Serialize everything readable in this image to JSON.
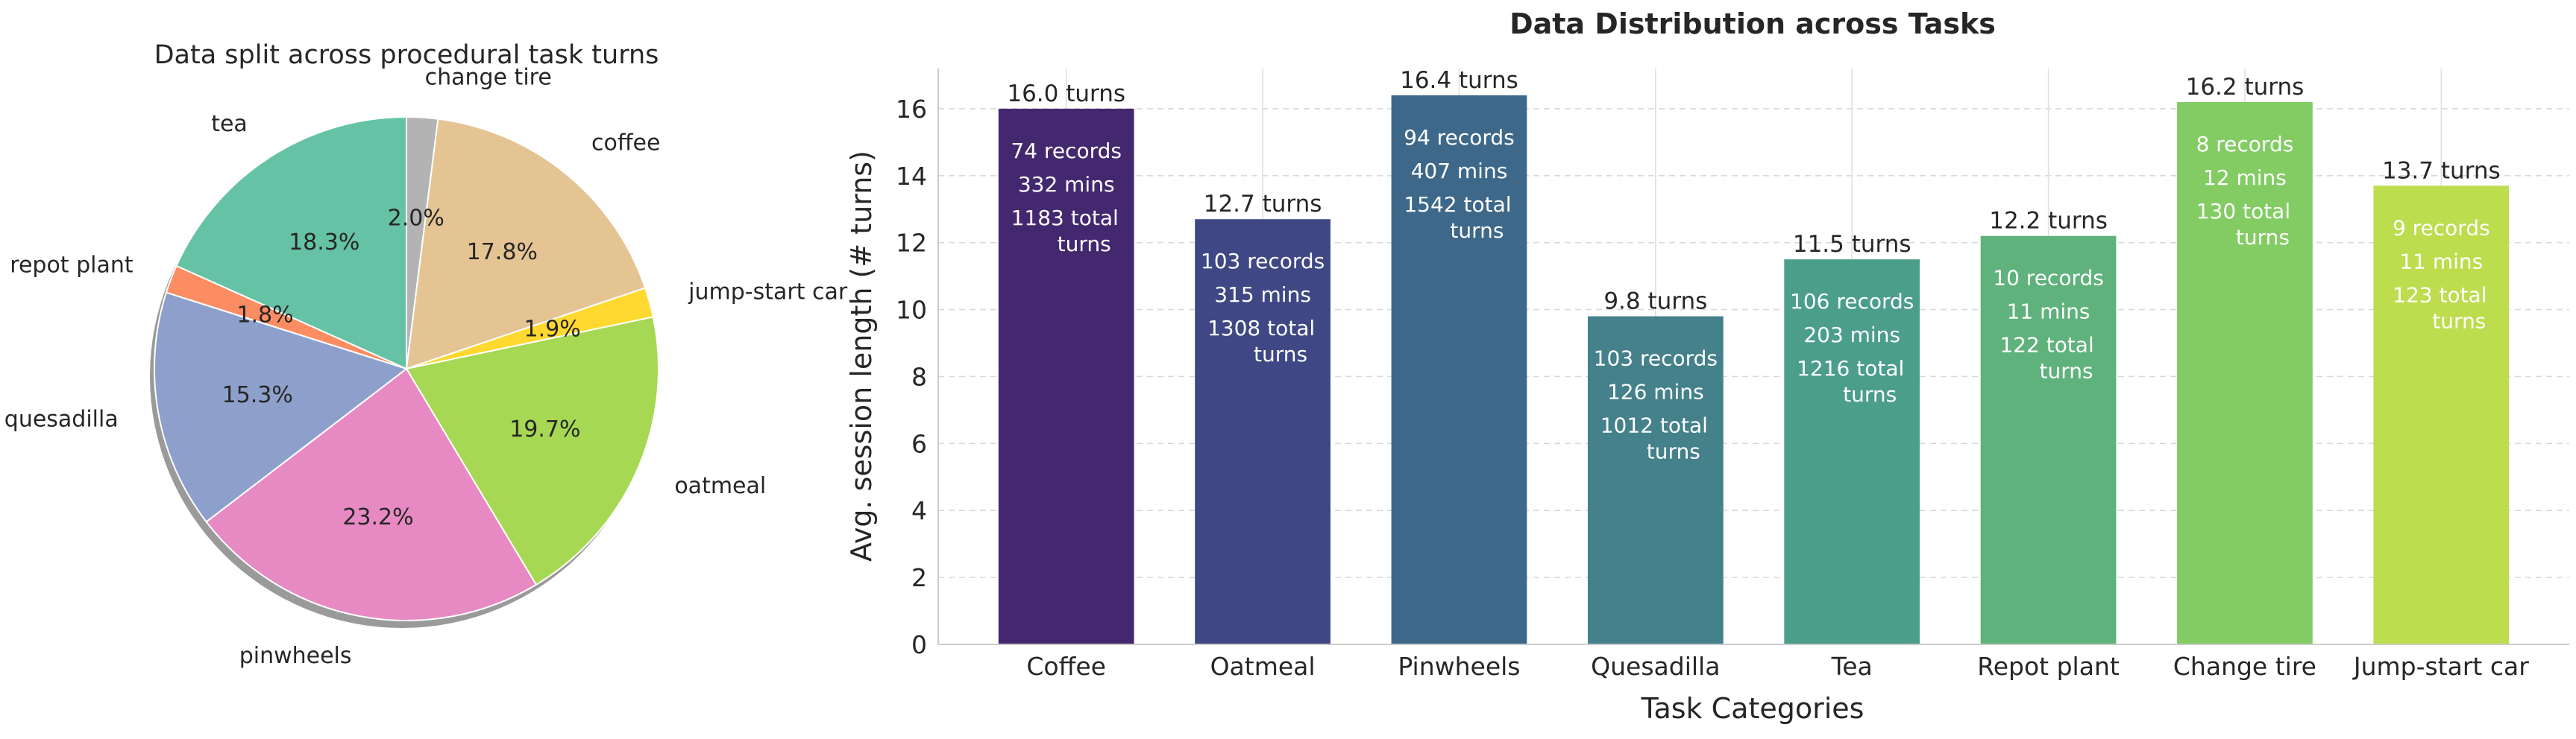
{
  "chart_data": [
    {
      "type": "pie",
      "title": "Data split across procedural task turns",
      "start_angle_deg": 90,
      "direction": "clockwise",
      "shadow": true,
      "slices": [
        {
          "label": "change tire",
          "value": 2.0,
          "pct_text": "2.0%",
          "color": "#b3b3b3"
        },
        {
          "label": "coffee",
          "value": 17.8,
          "pct_text": "17.8%",
          "color": "#e5c494"
        },
        {
          "label": "jump-start car",
          "value": 1.9,
          "pct_text": "1.9%",
          "color": "#ffd92f"
        },
        {
          "label": "oatmeal",
          "value": 19.7,
          "pct_text": "19.7%",
          "color": "#a6d854"
        },
        {
          "label": "pinwheels",
          "value": 23.2,
          "pct_text": "23.2%",
          "color": "#e78ac3"
        },
        {
          "label": "quesadilla",
          "value": 15.3,
          "pct_text": "15.3%",
          "color": "#8da0cb"
        },
        {
          "label": "repot plant",
          "value": 1.8,
          "pct_text": "1.8%",
          "color": "#fc8d62"
        },
        {
          "label": "tea",
          "value": 18.3,
          "pct_text": "18.3%",
          "color": "#66c2a5"
        }
      ]
    },
    {
      "type": "bar",
      "title": "Data Distribution across Tasks",
      "xlabel": "Task Categories",
      "ylabel": "Avg. session length (# turns)",
      "ylim": [
        0,
        17.2
      ],
      "yticks": [
        "0",
        "2",
        "4",
        "6",
        "8",
        "10",
        "12",
        "14",
        "16"
      ],
      "grid": "dashed",
      "categories": [
        "Coffee",
        "Oatmeal",
        "Pinwheels",
        "Quesadilla",
        "Tea",
        "Repot plant",
        "Change tire",
        "Jump-start car"
      ],
      "values": [
        16.0,
        12.7,
        16.4,
        9.8,
        11.5,
        12.2,
        16.2,
        13.7
      ],
      "value_labels": [
        "16.0 turns",
        "12.7 turns",
        "16.4 turns",
        "9.8 turns",
        "11.5 turns",
        "12.2 turns",
        "16.2 turns",
        "13.7 turns"
      ],
      "colors": [
        "#44286f",
        "#3f4885",
        "#3d6889",
        "#44818a",
        "#4b9e8a",
        "#5fb27b",
        "#83cc64",
        "#bcdd4e"
      ],
      "annotations": [
        {
          "records": "74 records",
          "mins": "332 mins",
          "total1": "1183 total",
          "total2": "turns"
        },
        {
          "records": "103 records",
          "mins": "315 mins",
          "total1": "1308 total",
          "total2": "turns"
        },
        {
          "records": "94 records",
          "mins": "407 mins",
          "total1": "1542 total",
          "total2": "turns"
        },
        {
          "records": "103 records",
          "mins": "126 mins",
          "total1": "1012 total",
          "total2": "turns"
        },
        {
          "records": "106 records",
          "mins": "203 mins",
          "total1": "1216 total",
          "total2": "turns"
        },
        {
          "records": "10 records",
          "mins": "11 mins",
          "total1": "122 total",
          "total2": "turns"
        },
        {
          "records": "8 records",
          "mins": "12 mins",
          "total1": "130 total",
          "total2": "turns"
        },
        {
          "records": "9 records",
          "mins": "11 mins",
          "total1": "123 total",
          "total2": "turns"
        }
      ]
    }
  ]
}
